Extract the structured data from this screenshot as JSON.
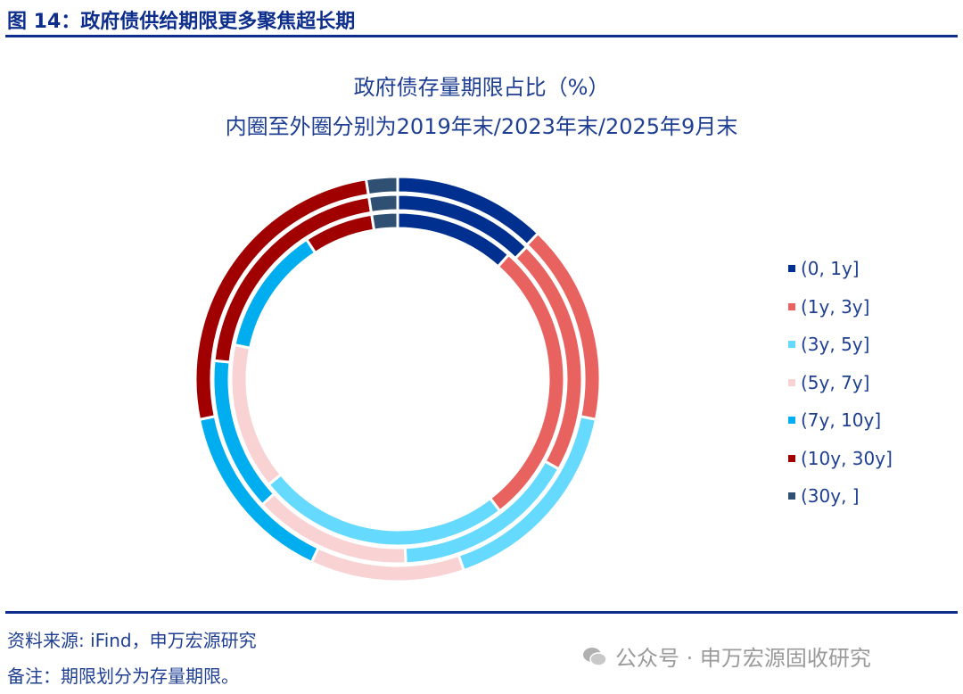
{
  "figure_title": "图 14：政府债供给期限更多聚焦超长期",
  "chart_data": {
    "type": "pie",
    "subtype": "multi-ring donut",
    "title": "政府债存量期限占比（%）",
    "subtitle": "内圈至外圈分别为2019年末/2023年末/2025年9月末",
    "categories": [
      "(0, 1y]",
      "(1y, 3y]",
      "(3y, 5y]",
      "(5y, 7y]",
      "(7y, 10y]",
      "(10y, 30y]",
      "(30y, ]"
    ],
    "colors": [
      "#00308F",
      "#E8625F",
      "#66D9FF",
      "#F9D2D3",
      "#00AEEF",
      "#A00000",
      "#2F4F73"
    ],
    "series": [
      {
        "name": "2019年末",
        "ring": "inner",
        "values": [
          11.6,
          27.9,
          24.6,
          14.2,
          12.5,
          6.7,
          2.5
        ]
      },
      {
        "name": "2023年末",
        "ring": "middle",
        "values": [
          12.3,
          20.8,
          16.2,
          13.8,
          13.5,
          20.9,
          2.5
        ]
      },
      {
        "name": "2025年9月末",
        "ring": "outer",
        "values": [
          12.2,
          16.0,
          16.5,
          12.3,
          14.8,
          25.7,
          2.5
        ]
      }
    ],
    "legend_position": "right"
  },
  "footer": {
    "source": "资料来源: iFind，申万宏源研究",
    "note": "备注：期限划分为存量期限。"
  },
  "watermark": "公众号 · 申万宏源固收研究"
}
